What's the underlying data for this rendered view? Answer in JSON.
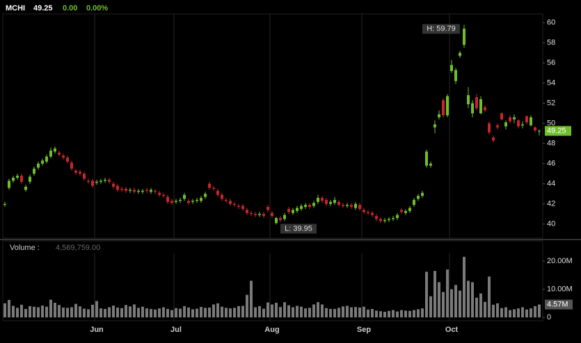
{
  "chart_data": {
    "type": "candlestick",
    "header": {
      "symbol": "MCHI",
      "price": "49.25",
      "change": "0.00",
      "change_pct": "0.00%"
    },
    "categories": [
      null,
      null,
      null,
      null,
      null,
      null,
      null,
      null,
      null,
      null,
      null,
      null,
      null,
      null,
      null,
      null,
      null,
      null,
      null,
      null,
      null,
      null,
      "Jun",
      null,
      null,
      null,
      null,
      null,
      null,
      null,
      null,
      null,
      null,
      null,
      null,
      null,
      null,
      null,
      null,
      null,
      null,
      "Jul",
      null,
      null,
      null,
      null,
      null,
      null,
      null,
      null,
      null,
      null,
      null,
      null,
      null,
      null,
      null,
      null,
      null,
      null,
      null,
      null,
      null,
      null,
      "Aug",
      null,
      null,
      null,
      null,
      null,
      null,
      null,
      null,
      null,
      null,
      null,
      null,
      null,
      null,
      null,
      null,
      null,
      null,
      null,
      null,
      null,
      "Sep",
      null,
      null,
      null,
      null,
      null,
      null,
      null,
      null,
      null,
      null,
      null,
      null,
      null,
      null,
      null,
      null,
      null,
      null,
      null,
      null,
      "Oct",
      null,
      null,
      null,
      null,
      null,
      null,
      null,
      null,
      null,
      null,
      null,
      null,
      null,
      null,
      null,
      null,
      null,
      null,
      null,
      null,
      null
    ],
    "ohlc": [
      [
        41.9,
        42.2,
        41.7,
        42.0
      ],
      [
        43.6,
        44.5,
        43.4,
        44.3
      ],
      [
        44.3,
        44.8,
        44.1,
        44.6
      ],
      [
        44.6,
        45.0,
        44.4,
        44.8
      ],
      [
        44.8,
        45.0,
        44.0,
        44.2
      ],
      [
        43.4,
        43.9,
        43.2,
        43.7
      ],
      [
        44.2,
        44.9,
        44.0,
        44.7
      ],
      [
        45.0,
        45.7,
        44.8,
        45.5
      ],
      [
        45.6,
        46.2,
        45.4,
        46.0
      ],
      [
        46.0,
        46.5,
        45.8,
        46.3
      ],
      [
        46.2,
        46.9,
        46.0,
        46.7
      ],
      [
        46.7,
        47.6,
        46.5,
        47.3
      ],
      [
        47.2,
        47.7,
        47.0,
        47.5
      ],
      [
        47.1,
        47.3,
        46.7,
        46.9
      ],
      [
        46.8,
        47.0,
        46.4,
        46.6
      ],
      [
        46.6,
        46.8,
        46.0,
        46.2
      ],
      [
        46.1,
        46.3,
        45.3,
        45.5
      ],
      [
        45.3,
        45.5,
        44.9,
        45.1
      ],
      [
        45.2,
        45.4,
        44.8,
        45.0
      ],
      [
        45.0,
        45.2,
        44.3,
        44.5
      ],
      [
        44.3,
        44.5,
        44.0,
        44.2
      ],
      [
        44.3,
        44.5,
        43.6,
        43.8
      ],
      [
        44.1,
        44.4,
        43.9,
        44.2
      ],
      [
        44.2,
        44.5,
        44.0,
        44.3
      ],
      [
        44.3,
        44.6,
        44.1,
        44.4
      ],
      [
        44.4,
        44.6,
        44.0,
        44.2
      ],
      [
        44.0,
        44.2,
        43.5,
        43.7
      ],
      [
        43.8,
        44.0,
        43.2,
        43.4
      ],
      [
        43.5,
        43.7,
        43.2,
        43.4
      ],
      [
        43.5,
        43.7,
        43.1,
        43.3
      ],
      [
        43.3,
        43.6,
        43.1,
        43.4
      ],
      [
        43.4,
        43.6,
        43.0,
        43.2
      ],
      [
        43.2,
        43.5,
        43.0,
        43.3
      ],
      [
        43.2,
        43.5,
        43.0,
        43.3
      ],
      [
        43.4,
        43.6,
        43.1,
        43.3
      ],
      [
        43.2,
        43.6,
        43.0,
        43.4
      ],
      [
        43.3,
        43.5,
        43.0,
        43.2
      ],
      [
        43.1,
        43.3,
        42.7,
        42.9
      ],
      [
        42.9,
        43.1,
        42.6,
        42.8
      ],
      [
        42.7,
        42.9,
        42.0,
        42.2
      ],
      [
        42.3,
        42.5,
        41.9,
        42.1
      ],
      [
        42.2,
        42.5,
        42.0,
        42.3
      ],
      [
        42.3,
        42.6,
        42.1,
        42.4
      ],
      [
        42.5,
        43.1,
        42.3,
        42.9
      ],
      [
        42.3,
        42.5,
        41.9,
        42.1
      ],
      [
        42.2,
        42.5,
        42.0,
        42.3
      ],
      [
        42.3,
        42.6,
        42.1,
        42.4
      ],
      [
        42.3,
        42.8,
        42.1,
        42.6
      ],
      [
        42.7,
        43.2,
        42.5,
        43.0
      ],
      [
        44.0,
        44.2,
        43.4,
        43.6
      ],
      [
        43.6,
        43.8,
        43.3,
        43.5
      ],
      [
        43.3,
        43.5,
        42.7,
        42.9
      ],
      [
        42.9,
        43.1,
        42.3,
        42.5
      ],
      [
        42.4,
        42.6,
        42.1,
        42.3
      ],
      [
        42.3,
        42.5,
        41.8,
        42.0
      ],
      [
        42.0,
        42.2,
        41.7,
        41.9
      ],
      [
        41.8,
        42.0,
        41.5,
        41.7
      ],
      [
        41.8,
        42.0,
        41.3,
        41.5
      ],
      [
        41.4,
        41.6,
        40.9,
        41.1
      ],
      [
        41.1,
        41.3,
        40.8,
        41.0
      ],
      [
        41.0,
        41.2,
        40.7,
        40.9
      ],
      [
        40.9,
        41.2,
        40.7,
        41.0
      ],
      [
        41.0,
        41.2,
        40.6,
        40.8
      ],
      [
        41.7,
        41.9,
        41.2,
        41.4
      ],
      [
        41.1,
        41.3,
        40.6,
        40.8
      ],
      [
        40.1,
        40.7,
        39.95,
        40.6
      ],
      [
        40.6,
        40.8,
        40.2,
        40.4
      ],
      [
        40.5,
        41.1,
        40.3,
        40.9
      ],
      [
        41.5,
        41.7,
        41.0,
        41.2
      ],
      [
        41.1,
        41.6,
        40.9,
        41.4
      ],
      [
        41.3,
        41.8,
        41.1,
        41.6
      ],
      [
        41.5,
        42.0,
        41.3,
        41.8
      ],
      [
        41.7,
        42.1,
        41.5,
        41.9
      ],
      [
        41.9,
        42.1,
        41.5,
        41.7
      ],
      [
        41.8,
        42.3,
        41.6,
        42.1
      ],
      [
        42.2,
        42.9,
        42.0,
        42.6
      ],
      [
        42.6,
        42.8,
        42.1,
        42.3
      ],
      [
        42.4,
        42.6,
        41.8,
        42.0
      ],
      [
        42.0,
        42.4,
        41.8,
        42.2
      ],
      [
        42.1,
        42.7,
        41.9,
        42.4
      ],
      [
        42.2,
        42.4,
        41.7,
        41.9
      ],
      [
        41.9,
        42.1,
        41.6,
        41.8
      ],
      [
        41.8,
        42.1,
        41.6,
        41.9
      ],
      [
        41.9,
        42.1,
        41.5,
        41.7
      ],
      [
        41.6,
        42.2,
        41.4,
        42.0
      ],
      [
        41.9,
        42.1,
        41.3,
        41.5
      ],
      [
        41.4,
        41.6,
        41.0,
        41.2
      ],
      [
        41.2,
        41.4,
        40.9,
        41.1
      ],
      [
        41.1,
        41.3,
        40.7,
        40.9
      ],
      [
        40.8,
        41.0,
        40.3,
        40.5
      ],
      [
        40.5,
        40.7,
        40.1,
        40.3
      ],
      [
        40.3,
        40.6,
        40.1,
        40.4
      ],
      [
        40.4,
        40.7,
        40.2,
        40.5
      ],
      [
        40.5,
        40.8,
        40.3,
        40.6
      ],
      [
        40.6,
        41.1,
        40.4,
        40.9
      ],
      [
        41.4,
        41.6,
        41.0,
        41.2
      ],
      [
        41.1,
        41.5,
        40.9,
        41.3
      ],
      [
        41.3,
        41.8,
        41.1,
        41.6
      ],
      [
        41.9,
        42.6,
        41.7,
        42.4
      ],
      [
        42.5,
        43.0,
        42.3,
        42.8
      ],
      [
        42.8,
        43.3,
        42.6,
        43.1
      ],
      [
        45.8,
        47.4,
        45.6,
        47.2
      ],
      [
        45.8,
        46.2,
        45.6,
        46.0
      ],
      [
        49.6,
        50.3,
        49.0,
        49.9
      ],
      [
        50.6,
        51.3,
        50.4,
        50.9
      ],
      [
        52.3,
        52.5,
        50.6,
        50.8
      ],
      [
        50.8,
        52.9,
        50.6,
        52.7
      ],
      [
        55.2,
        56.3,
        55.0,
        55.8
      ],
      [
        54.2,
        55.5,
        53.9,
        55.3
      ],
      [
        56.7,
        57.2,
        56.5,
        57.0
      ],
      [
        57.8,
        59.79,
        57.5,
        59.4
      ],
      [
        51.9,
        53.6,
        51.5,
        52.8
      ],
      [
        51.0,
        52.3,
        50.6,
        52.0
      ],
      [
        52.6,
        52.9,
        51.3,
        51.5
      ],
      [
        51.0,
        52.7,
        50.9,
        52.4
      ],
      [
        51.6,
        51.8,
        51.1,
        51.3
      ],
      [
        50.0,
        50.2,
        48.9,
        49.1
      ],
      [
        48.6,
        48.8,
        48.1,
        48.3
      ],
      [
        49.8,
        50.0,
        49.4,
        49.6
      ],
      [
        51.0,
        51.1,
        50.3,
        50.4
      ],
      [
        49.7,
        50.3,
        49.4,
        50.1
      ],
      [
        50.6,
        50.8,
        50.0,
        50.2
      ],
      [
        50.4,
        50.9,
        50.0,
        50.6
      ],
      [
        50.3,
        50.4,
        49.5,
        49.7
      ],
      [
        49.8,
        50.2,
        49.5,
        49.9
      ],
      [
        50.7,
        50.8,
        49.9,
        50.1
      ],
      [
        49.8,
        50.8,
        49.7,
        50.6
      ],
      [
        49.6,
        49.7,
        49.1,
        49.3
      ],
      [
        49.2,
        49.4,
        48.8,
        49.25
      ]
    ],
    "up_color": "#6fbf2c",
    "down_color": "#c8262b",
    "ylim": [
      38.6,
      61.7
    ],
    "yticks": [
      40,
      42,
      44,
      46,
      48,
      50,
      52,
      54,
      56,
      58,
      60
    ],
    "grid": true,
    "last_label": "49.25",
    "high_label": "H: 59.79",
    "low_label": "L: 39.95",
    "volume": {
      "name": "Volume :",
      "value_text": "4,569,759.00",
      "color": "#7a7a7a",
      "values": [
        5.0,
        6.2,
        4.1,
        3.4,
        4.5,
        3.0,
        4.0,
        3.8,
        3.6,
        4.2,
        3.8,
        6.3,
        5.2,
        4.4,
        3.5,
        3.4,
        3.6,
        4.8,
        3.9,
        3.1,
        2.9,
        4.5,
        5.8,
        3.2,
        3.0,
        3.6,
        4.2,
        3.5,
        3.3,
        4.4,
        3.9,
        4.6,
        3.4,
        3.8,
        3.2,
        3.0,
        2.8,
        3.2,
        3.6,
        3.0,
        2.6,
        3.3,
        3.1,
        4.0,
        3.5,
        2.9,
        3.1,
        3.7,
        3.4,
        3.5,
        4.6,
        5.0,
        3.8,
        3.4,
        3.2,
        3.4,
        4.0,
        4.1,
        8.0,
        13.0,
        3.6,
        4.0,
        3.1,
        5.3,
        4.6,
        5.2,
        3.7,
        5.4,
        4.3,
        3.6,
        4.1,
        3.8,
        3.2,
        3.4,
        4.6,
        5.4,
        4.6,
        3.3,
        3.0,
        3.0,
        3.4,
        3.9,
        4.1,
        3.6,
        3.7,
        3.5,
        3.8,
        2.8,
        3.0,
        2.4,
        2.2,
        2.0,
        2.3,
        2.6,
        2.1,
        2.6,
        2.4,
        2.3,
        2.6,
        2.9,
        3.2,
        16.2,
        7.5,
        16.5,
        12.5,
        9.0,
        17.0,
        10.0,
        11.5,
        9.5,
        21.5,
        13.0,
        12.5,
        7.0,
        8.5,
        5.5,
        14.5,
        4.5,
        5.0,
        3.3,
        3.6,
        2.6,
        2.9,
        3.2,
        3.6,
        2.8,
        3.2,
        4.0,
        4.57
      ],
      "ylim": [
        -1.2,
        22.7
      ],
      "yticks": [
        {
          "value": 20,
          "label": "20.00M"
        },
        {
          "value": 10,
          "label": "10.00M"
        },
        0
      ],
      "last_label": "4.57M"
    }
  }
}
